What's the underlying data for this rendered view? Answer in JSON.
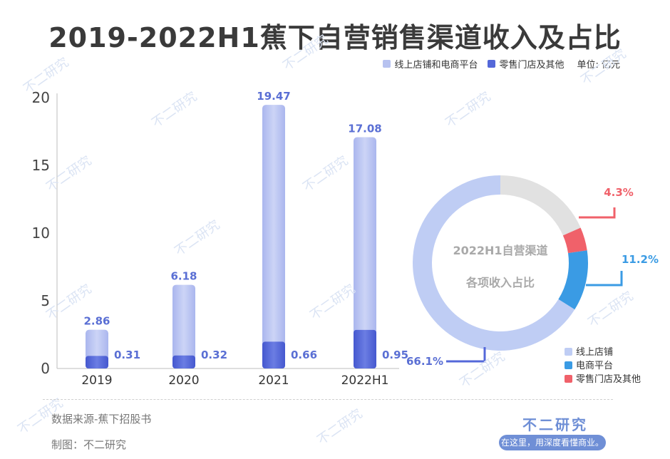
{
  "title": "2019-2022H1蕉下自营销售渠道收入及占比",
  "legend_top": {
    "item1": "线上店铺和电商平台",
    "item2": "零售门店及其他",
    "unit": "单位: 亿元"
  },
  "colors": {
    "bar_light": "#b7c2f0",
    "bar_dark": "#5468d9",
    "label": "#5a6fd4",
    "donut_light": "#bfcdf4",
    "donut_blue": "#3a9be4",
    "donut_red": "#f0616a",
    "donut_gray": "#e1e1e1"
  },
  "chart_data": [
    {
      "type": "bar",
      "title": "",
      "categories": [
        "2019",
        "2020",
        "2021",
        "2022H1"
      ],
      "series": [
        {
          "name": "线上店铺和电商平台",
          "values": [
            2.86,
            6.18,
            19.47,
            17.08
          ]
        },
        {
          "name": "零售门店及其他",
          "values": [
            0.31,
            0.32,
            0.66,
            0.95
          ]
        }
      ],
      "yticks": [
        0,
        5,
        10,
        15,
        20
      ],
      "ylim": [
        0,
        20
      ],
      "xlabel": "",
      "ylabel": "",
      "grid": false
    },
    {
      "type": "pie",
      "title": "2022H1自营渠道",
      "subtitle": "各项收入占比",
      "slices": [
        {
          "name": "线上店铺",
          "value": 66.1,
          "label": "66.1%"
        },
        {
          "name": "电商平台",
          "value": 11.2,
          "label": "11.2%"
        },
        {
          "name": "零售门店及其他",
          "value": 4.3,
          "label": "4.3%"
        },
        {
          "name": "",
          "value": 18.4,
          "label": ""
        }
      ],
      "legend": [
        "线上店铺",
        "电商平台",
        "零售门店及其他"
      ],
      "legend_position": "bottom-right"
    }
  ],
  "watermark": "不二研究",
  "footer": {
    "source": "数据来源-蕉下招股书",
    "maker": "制图：不二研究",
    "brand": "不二研究",
    "slogan": "在这里，用深度看懂商业。"
  }
}
